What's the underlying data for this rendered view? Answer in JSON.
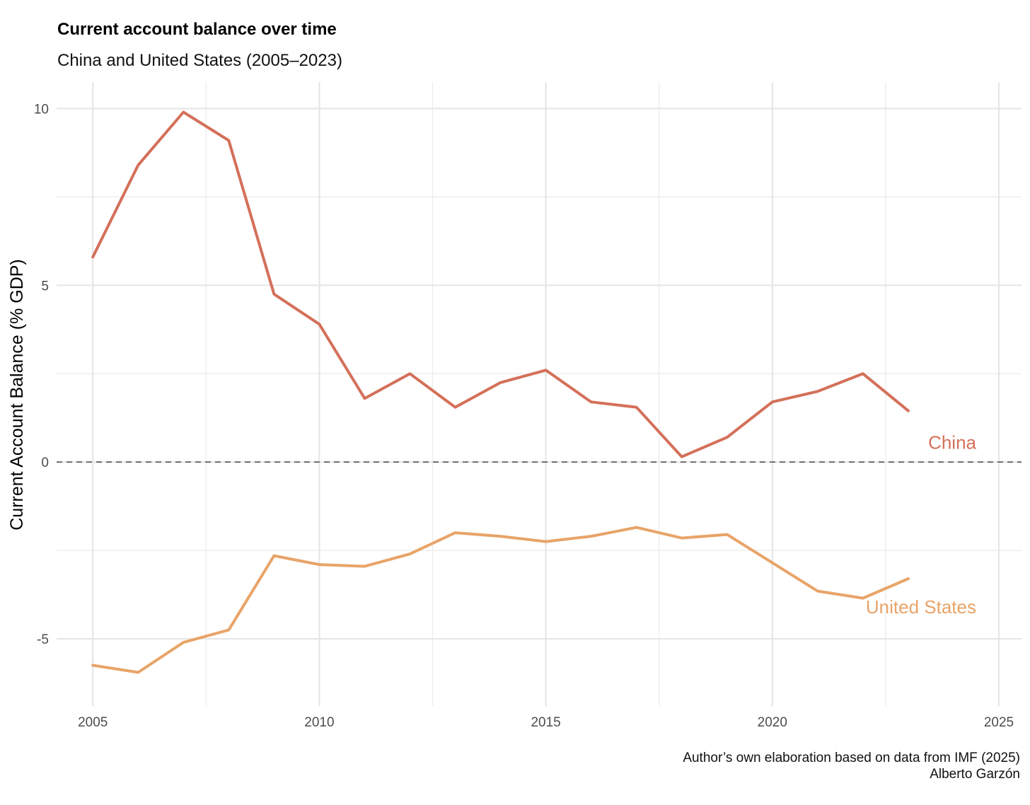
{
  "chart_data": {
    "type": "line",
    "title": "Current account balance over time",
    "subtitle": "China and United States (2005–2023)",
    "xlabel": "",
    "ylabel": "Current Account Balance (% GDP)",
    "xlim": [
      2004.2,
      2025.5
    ],
    "ylim": [
      -6.9,
      10.75
    ],
    "x_ticks": [
      2005,
      2010,
      2015,
      2020,
      2025
    ],
    "x_minor_ticks": [
      2007.5,
      2012.5,
      2017.5,
      2022.5
    ],
    "y_ticks": [
      -5,
      0,
      5,
      10
    ],
    "y_minor_ticks": [
      -2.5,
      2.5,
      7.5
    ],
    "grid": true,
    "zero_line": {
      "y": 0,
      "style": "dashed",
      "color": "#555555"
    },
    "x": [
      2005,
      2006,
      2007,
      2008,
      2009,
      2010,
      2011,
      2012,
      2013,
      2014,
      2015,
      2016,
      2017,
      2018,
      2019,
      2020,
      2021,
      2022,
      2023
    ],
    "series": [
      {
        "name": "China",
        "color": "#d4705a",
        "values": [
          5.8,
          8.4,
          9.9,
          9.1,
          4.75,
          3.9,
          1.8,
          2.5,
          1.55,
          2.25,
          2.6,
          1.7,
          1.55,
          0.15,
          0.7,
          1.7,
          2.0,
          2.5,
          1.45
        ]
      },
      {
        "name": "United States",
        "color": "#e8a468",
        "values": [
          -5.75,
          -5.95,
          -5.1,
          -4.75,
          -2.65,
          -2.9,
          -2.95,
          -2.6,
          -2.0,
          -2.1,
          -2.25,
          -2.1,
          -1.85,
          -2.15,
          -2.05,
          -2.85,
          -3.65,
          -3.85,
          -3.3
        ]
      }
    ],
    "caption_lines": [
      "Author’s own elaboration based on data from IMF (2025)",
      "Alberto Garzón"
    ]
  }
}
